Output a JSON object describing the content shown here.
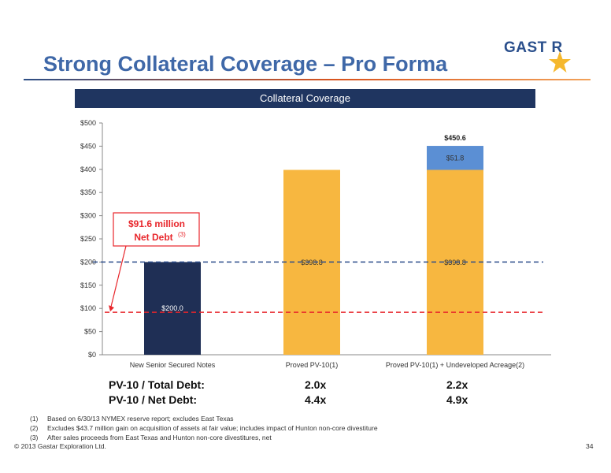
{
  "slide": {
    "title": "Strong Collateral Coverage – Pro Forma",
    "logo_text": "GAST R",
    "banner": "Collateral Coverage",
    "page_number": "34",
    "copyright": "© 2013 Gastar Exploration Ltd."
  },
  "chart_data": {
    "type": "bar",
    "stacked": true,
    "categories": [
      "New Senior Secured Notes",
      "Proved PV-10(1)",
      "Proved PV-10(1) + Undeveloped Acreage(2)"
    ],
    "series": [
      {
        "values": [
          200.0,
          398.8,
          398.8
        ],
        "labels": [
          "$200.0",
          "$398.8",
          "$398.8"
        ],
        "colors": [
          "#1f2f55",
          "#f7b740",
          "#f7b740"
        ]
      },
      {
        "values": [
          0,
          0,
          51.8
        ],
        "labels": [
          "",
          "",
          "$51.8"
        ],
        "colors": [
          "#5b8fd4",
          "#5b8fd4",
          "#5b8fd4"
        ]
      }
    ],
    "totals": [
      {
        "index": 2,
        "label": "$450.6"
      }
    ],
    "yticks": [
      "$0",
      "$50",
      "$100",
      "$150",
      "$200",
      "$250",
      "$300",
      "$350",
      "$400",
      "$450",
      "$500"
    ],
    "ylim": [
      0,
      500
    ],
    "reference_lines": [
      {
        "value": 200,
        "color": "#2f4f8c"
      },
      {
        "value": 91.6,
        "color": "#e8262b"
      }
    ],
    "annotation": {
      "line1": "$91.6 million",
      "line2": "Net Debt",
      "superscript": "(3)",
      "color": "#e8262b"
    }
  },
  "summary": {
    "rows": [
      {
        "label": "PV-10 / Total Debt:",
        "values": [
          "2.0x",
          "2.2x"
        ]
      },
      {
        "label": "PV-10 / Net Debt:",
        "values": [
          "4.4x",
          "4.9x"
        ]
      }
    ]
  },
  "footnotes": [
    {
      "num": "(1)",
      "text": "Based on 6/30/13 NYMEX reserve report; excludes East Texas"
    },
    {
      "num": "(2)",
      "text": "Excludes $43.7 million gain on acquisition of assets at fair value; includes impact of Hunton non-core divestiture"
    },
    {
      "num": "(3)",
      "text": "After sales proceeds from East Texas and Hunton non-core divestitures, net"
    }
  ],
  "colors": {
    "title": "#3f68a8",
    "banner": "#1f3560",
    "navy_bar": "#1f2f55",
    "orange_bar": "#f7b740",
    "blue_bar": "#5b8fd4",
    "red": "#e8262b"
  }
}
